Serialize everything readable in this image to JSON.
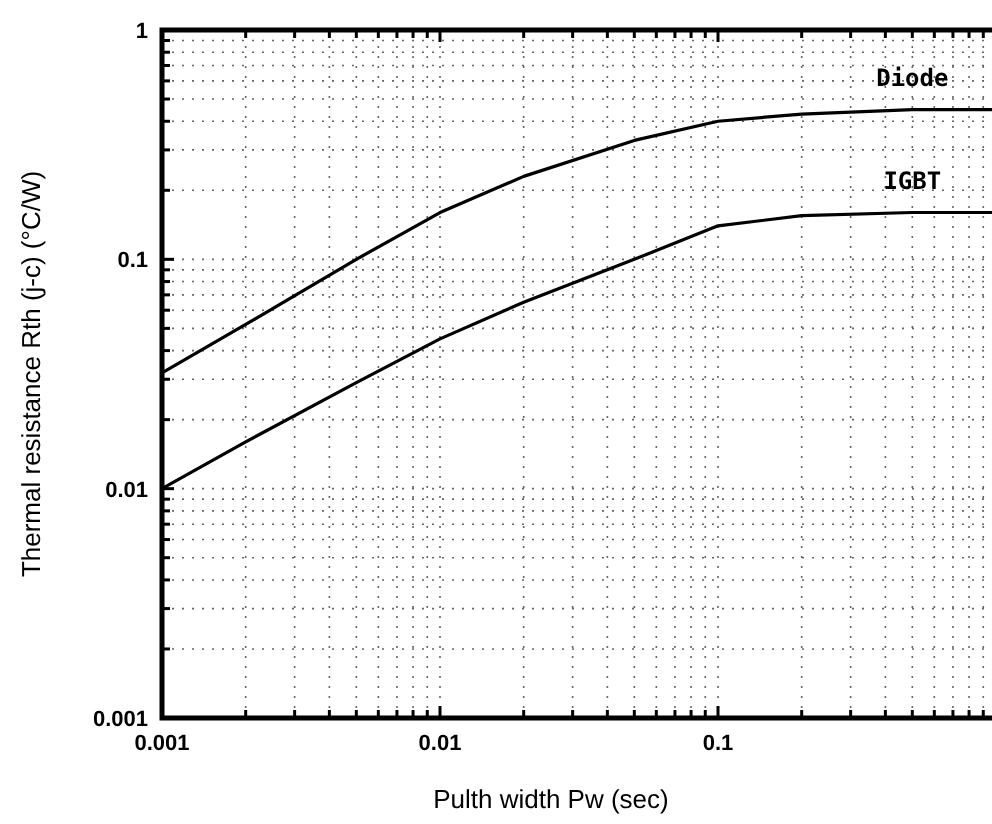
{
  "chart_data": {
    "type": "line",
    "xlabel": "Pulth width Pw (sec)",
    "ylabel": "Thermal resistance Rth (j-c) (°C/W)",
    "log": "xy",
    "grid": true,
    "marker": "none",
    "line_style": "solid",
    "xlim": [
      0.001,
      1
    ],
    "ylim": [
      0.001,
      1
    ],
    "xticks": [
      0.001,
      {
        "value": 0.002,
        "label": null
      },
      {
        "value": 0.003,
        "label": null
      },
      {
        "value": 0.004,
        "label": null
      },
      {
        "value": 0.005,
        "label": null
      },
      {
        "value": 0.006,
        "label": null
      },
      {
        "value": 0.007,
        "label": null
      },
      {
        "value": 0.008,
        "label": null
      },
      {
        "value": 0.009,
        "label": null
      },
      0.01,
      {
        "value": 0.02,
        "label": null
      },
      {
        "value": 0.03,
        "label": null
      },
      {
        "value": 0.04,
        "label": null
      },
      {
        "value": 0.05,
        "label": null
      },
      {
        "value": 0.06,
        "label": null
      },
      {
        "value": 0.07,
        "label": null
      },
      {
        "value": 0.08,
        "label": null
      },
      {
        "value": 0.09,
        "label": null
      },
      0.1,
      {
        "value": 0.2,
        "label": null
      },
      {
        "value": 0.3,
        "label": null
      },
      {
        "value": 0.4,
        "label": null
      },
      {
        "value": 0.5,
        "label": null
      },
      {
        "value": 0.6,
        "label": null
      },
      {
        "value": 0.7,
        "label": null
      },
      {
        "value": 0.8,
        "label": null
      },
      {
        "value": 0.9,
        "label": null
      }
    ],
    "yticks": [
      0.001,
      {
        "value": 0.002,
        "label": null
      },
      {
        "value": 0.003,
        "label": null
      },
      {
        "value": 0.004,
        "label": null
      },
      {
        "value": 0.005,
        "label": null
      },
      {
        "value": 0.006,
        "label": null
      },
      {
        "value": 0.007,
        "label": null
      },
      {
        "value": 0.008,
        "label": null
      },
      {
        "value": 0.009,
        "label": null
      },
      0.01,
      {
        "value": 0.02,
        "label": null
      },
      {
        "value": 0.03,
        "label": null
      },
      {
        "value": 0.04,
        "label": null
      },
      {
        "value": 0.05,
        "label": null
      },
      {
        "value": 0.06,
        "label": null
      },
      {
        "value": 0.07,
        "label": null
      },
      {
        "value": 0.08,
        "label": null
      },
      {
        "value": 0.09,
        "label": null
      },
      0.1,
      {
        "value": 0.2,
        "label": null
      },
      {
        "value": 0.3,
        "label": null
      },
      {
        "value": 0.4,
        "label": null
      },
      {
        "value": 0.5,
        "label": null
      },
      {
        "value": 0.6,
        "label": null
      },
      {
        "value": 0.7,
        "label": null
      },
      {
        "value": 0.8,
        "label": null
      },
      {
        "value": 0.9,
        "label": null
      },
      1
    ],
    "x": [
      0.001,
      0.002,
      0.005,
      0.01,
      0.02,
      0.05,
      0.1,
      0.2,
      0.5,
      1
    ],
    "series": [
      {
        "name": "Diode",
        "color": "#000000",
        "values": [
          0.032,
          0.052,
          0.1,
          0.16,
          0.23,
          0.33,
          0.4,
          0.43,
          0.45,
          0.45
        ]
      },
      {
        "name": "IGBT",
        "color": "#000000",
        "values": [
          0.01,
          0.016,
          0.029,
          0.045,
          0.065,
          0.1,
          0.14,
          0.155,
          0.16,
          0.16
        ]
      }
    ]
  }
}
